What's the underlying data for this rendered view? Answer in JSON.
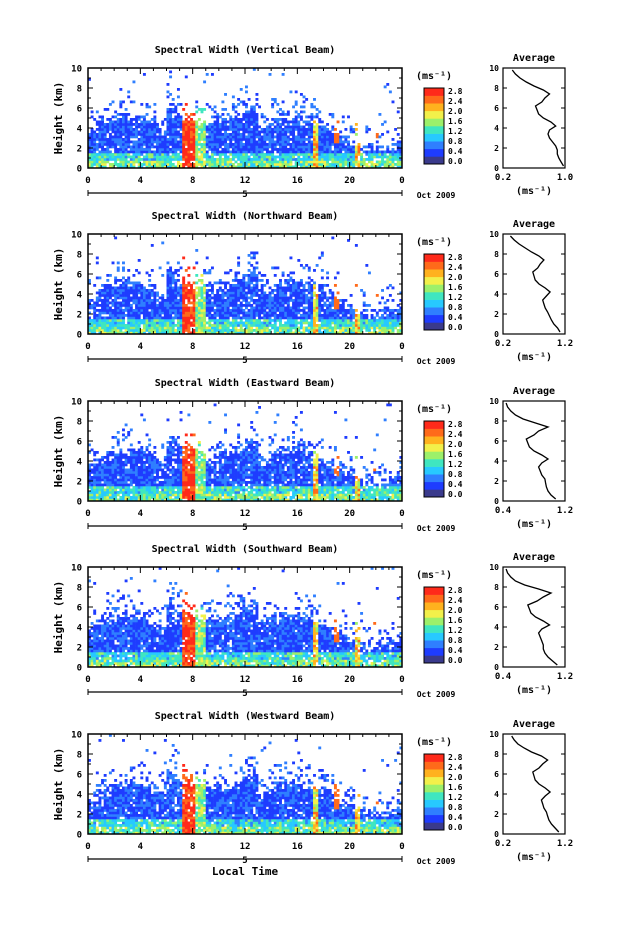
{
  "colorbar": {
    "unit": "(ms⁻¹)",
    "ticks": [
      "0.0",
      "0.4",
      "0.8",
      "1.2",
      "1.6",
      "2.0",
      "2.4",
      "2.8"
    ],
    "colors": [
      "#3a3a8c",
      "#1e3cff",
      "#2f7fff",
      "#27c9ff",
      "#3fe6c0",
      "#9cf06a",
      "#f2f04a",
      "#ffb21e",
      "#ff6a1a",
      "#ff2a1a"
    ]
  },
  "chart_data": [
    {
      "type": "heatmap",
      "title": "Spectral Width (Vertical Beam)",
      "ylabel": "Height (km)",
      "xlabel": "",
      "xticks": [
        "0",
        "4",
        "8",
        "12",
        "16",
        "20",
        "0"
      ],
      "yticks": [
        "0",
        "2",
        "4",
        "6",
        "8",
        "10"
      ],
      "xlim": [
        0,
        24
      ],
      "ylim": [
        0,
        10
      ],
      "date_label": "Oct 2009",
      "day_label": "5",
      "profile": {
        "title": "Average",
        "xlabel": "(ms⁻¹)",
        "xticks": [
          "0.2",
          "1.0"
        ],
        "xlim": [
          0.2,
          1.0
        ],
        "yticks": [
          "0",
          "2",
          "4",
          "6",
          "8",
          "10"
        ],
        "height_km": [
          0.2,
          0.6,
          1.0,
          1.4,
          1.8,
          2.2,
          2.6,
          3.0,
          3.4,
          3.8,
          4.2,
          4.6,
          5.0,
          5.4,
          5.8,
          6.2,
          6.6,
          7.0,
          7.4,
          7.8,
          8.2,
          8.6,
          9.0,
          9.4,
          9.8
        ],
        "values": [
          0.98,
          0.95,
          0.92,
          0.9,
          0.9,
          0.88,
          0.84,
          0.8,
          0.78,
          0.8,
          0.88,
          0.82,
          0.72,
          0.66,
          0.64,
          0.62,
          0.7,
          0.74,
          0.8,
          0.72,
          0.6,
          0.5,
          0.42,
          0.36,
          0.32
        ]
      }
    },
    {
      "type": "heatmap",
      "title": "Spectral Width (Northward Beam)",
      "ylabel": "Height (km)",
      "xlabel": "",
      "xticks": [
        "0",
        "4",
        "8",
        "12",
        "16",
        "20",
        "0"
      ],
      "yticks": [
        "0",
        "2",
        "4",
        "6",
        "8",
        "10"
      ],
      "xlim": [
        0,
        24
      ],
      "ylim": [
        0,
        10
      ],
      "date_label": "Oct 2009",
      "day_label": "5",
      "profile": {
        "title": "Average",
        "xlabel": "(ms⁻¹)",
        "xticks": [
          "0.2",
          "1.2"
        ],
        "xlim": [
          0.2,
          1.2
        ],
        "yticks": [
          "0",
          "2",
          "4",
          "6",
          "8",
          "10"
        ],
        "height_km": [
          0.2,
          0.6,
          1.0,
          1.4,
          1.8,
          2.2,
          2.6,
          3.0,
          3.4,
          3.8,
          4.2,
          4.6,
          5.0,
          5.4,
          5.8,
          6.2,
          6.6,
          7.0,
          7.4,
          7.8,
          8.2,
          8.6,
          9.0,
          9.4,
          9.8
        ],
        "values": [
          1.12,
          1.08,
          1.02,
          0.98,
          0.95,
          0.92,
          0.88,
          0.86,
          0.84,
          0.9,
          0.96,
          0.88,
          0.78,
          0.72,
          0.7,
          0.68,
          0.76,
          0.8,
          0.86,
          0.78,
          0.66,
          0.56,
          0.46,
          0.38,
          0.32
        ]
      }
    },
    {
      "type": "heatmap",
      "title": "Spectral Width (Eastward Beam)",
      "ylabel": "Height (km)",
      "xlabel": "",
      "xticks": [
        "0",
        "4",
        "8",
        "12",
        "16",
        "20",
        "0"
      ],
      "yticks": [
        "0",
        "2",
        "4",
        "6",
        "8",
        "10"
      ],
      "xlim": [
        0,
        24
      ],
      "ylim": [
        0,
        10
      ],
      "date_label": "Oct 2009",
      "day_label": "5",
      "profile": {
        "title": "Average",
        "xlabel": "(ms⁻¹)",
        "xticks": [
          "0.4",
          "1.2"
        ],
        "xlim": [
          0.4,
          1.2
        ],
        "yticks": [
          "0",
          "2",
          "4",
          "6",
          "8",
          "10"
        ],
        "height_km": [
          0.2,
          0.6,
          1.0,
          1.4,
          1.8,
          2.2,
          2.6,
          3.0,
          3.4,
          3.8,
          4.2,
          4.6,
          5.0,
          5.4,
          5.8,
          6.2,
          6.6,
          7.0,
          7.4,
          7.8,
          8.2,
          8.6,
          9.0,
          9.4,
          9.8
        ],
        "values": [
          1.08,
          1.02,
          0.98,
          0.96,
          0.95,
          0.94,
          0.9,
          0.88,
          0.86,
          0.9,
          0.98,
          0.9,
          0.8,
          0.74,
          0.72,
          0.7,
          0.8,
          0.86,
          0.98,
          0.82,
          0.66,
          0.56,
          0.5,
          0.46,
          0.44
        ]
      }
    },
    {
      "type": "heatmap",
      "title": "Spectral Width (Southward Beam)",
      "ylabel": "Height (km)",
      "xlabel": "",
      "xticks": [
        "0",
        "4",
        "8",
        "12",
        "16",
        "20",
        "0"
      ],
      "yticks": [
        "0",
        "2",
        "4",
        "6",
        "8",
        "10"
      ],
      "xlim": [
        0,
        24
      ],
      "ylim": [
        0,
        10
      ],
      "date_label": "Oct 2009",
      "day_label": "5",
      "profile": {
        "title": "Average",
        "xlabel": "(ms⁻¹)",
        "xticks": [
          "0.4",
          "1.2"
        ],
        "xlim": [
          0.4,
          1.2
        ],
        "yticks": [
          "0",
          "2",
          "4",
          "6",
          "8",
          "10"
        ],
        "height_km": [
          0.2,
          0.6,
          1.0,
          1.4,
          1.8,
          2.2,
          2.6,
          3.0,
          3.4,
          3.8,
          4.2,
          4.6,
          5.0,
          5.4,
          5.8,
          6.2,
          6.6,
          7.0,
          7.4,
          7.8,
          8.2,
          8.6,
          9.0,
          9.4,
          9.8
        ],
        "values": [
          1.1,
          1.04,
          0.98,
          0.94,
          0.92,
          0.92,
          0.9,
          0.88,
          0.86,
          0.9,
          1.0,
          0.92,
          0.82,
          0.76,
          0.74,
          0.72,
          0.84,
          0.92,
          1.02,
          0.86,
          0.68,
          0.56,
          0.5,
          0.46,
          0.44
        ]
      }
    },
    {
      "type": "heatmap",
      "title": "Spectral Width (Westward Beam)",
      "ylabel": "Height (km)",
      "xlabel": "Local Time",
      "xticks": [
        "0",
        "4",
        "8",
        "12",
        "16",
        "20",
        "0"
      ],
      "yticks": [
        "0",
        "2",
        "4",
        "6",
        "8",
        "10"
      ],
      "xlim": [
        0,
        24
      ],
      "ylim": [
        0,
        10
      ],
      "date_label": "Oct 2009",
      "day_label": "5",
      "profile": {
        "title": "Average",
        "xlabel": "(ms⁻¹)",
        "xticks": [
          "0.2",
          "1.2"
        ],
        "xlim": [
          0.2,
          1.2
        ],
        "yticks": [
          "0",
          "2",
          "4",
          "6",
          "8",
          "10"
        ],
        "height_km": [
          0.2,
          0.6,
          1.0,
          1.4,
          1.8,
          2.2,
          2.6,
          3.0,
          3.4,
          3.8,
          4.2,
          4.6,
          5.0,
          5.4,
          5.8,
          6.2,
          6.6,
          7.0,
          7.4,
          7.8,
          8.2,
          8.6,
          9.0,
          9.4,
          9.8
        ],
        "values": [
          1.1,
          1.04,
          0.98,
          0.94,
          0.92,
          0.9,
          0.86,
          0.84,
          0.82,
          0.88,
          0.96,
          0.88,
          0.78,
          0.72,
          0.7,
          0.68,
          0.78,
          0.84,
          0.92,
          0.82,
          0.66,
          0.54,
          0.44,
          0.38,
          0.34
        ]
      }
    }
  ]
}
